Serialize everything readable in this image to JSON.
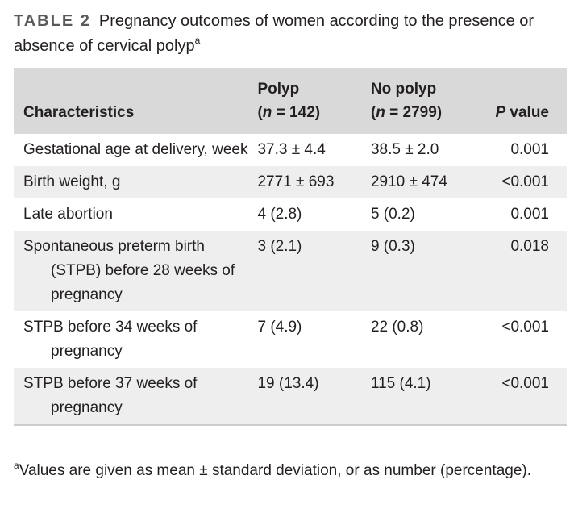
{
  "caption": {
    "label": "TABLE 2",
    "title": "Pregnancy outcomes of women according to the presence or absence of cervical polyp",
    "marker": "a"
  },
  "table": {
    "headers": {
      "characteristics": "Characteristics",
      "polyp_line1": "Polyp",
      "polyp_n_prefix": "(",
      "polyp_n_italic": "n",
      "polyp_n_rest": " = 142)",
      "nopolyp_line1": "No polyp",
      "nopolyp_n_prefix": "(",
      "nopolyp_n_italic": "n",
      "nopolyp_n_rest": " = 2799)",
      "p_italic": "P",
      "p_rest": " value"
    },
    "rows": [
      {
        "characteristic": "Gestational age at delivery, week",
        "polyp": "37.3 ± 4.4",
        "no_polyp": "38.5 ± 2.0",
        "p_value": "0.001"
      },
      {
        "characteristic": "Birth weight, g",
        "polyp": "2771 ± 693",
        "no_polyp": "2910 ± 474",
        "p_value": "<0.001"
      },
      {
        "characteristic": "Late abortion",
        "polyp": "4 (2.8)",
        "no_polyp": "5 (0.2)",
        "p_value": "0.001"
      },
      {
        "characteristic": "Spontaneous preterm birth (STPB) before 28 weeks of pregnancy",
        "polyp": "3 (2.1)",
        "no_polyp": "9 (0.3)",
        "p_value": "0.018"
      },
      {
        "characteristic": "STPB before 34 weeks of pregnancy",
        "polyp": "7 (4.9)",
        "no_polyp": "22 (0.8)",
        "p_value": "<0.001"
      },
      {
        "characteristic": "STPB before 37 weeks of pregnancy",
        "polyp": "19 (13.4)",
        "no_polyp": "115 (4.1)",
        "p_value": "<0.001"
      }
    ]
  },
  "footnote": {
    "marker": "a",
    "text": "Values are given as mean ± standard deviation, or as number (percentage)."
  }
}
